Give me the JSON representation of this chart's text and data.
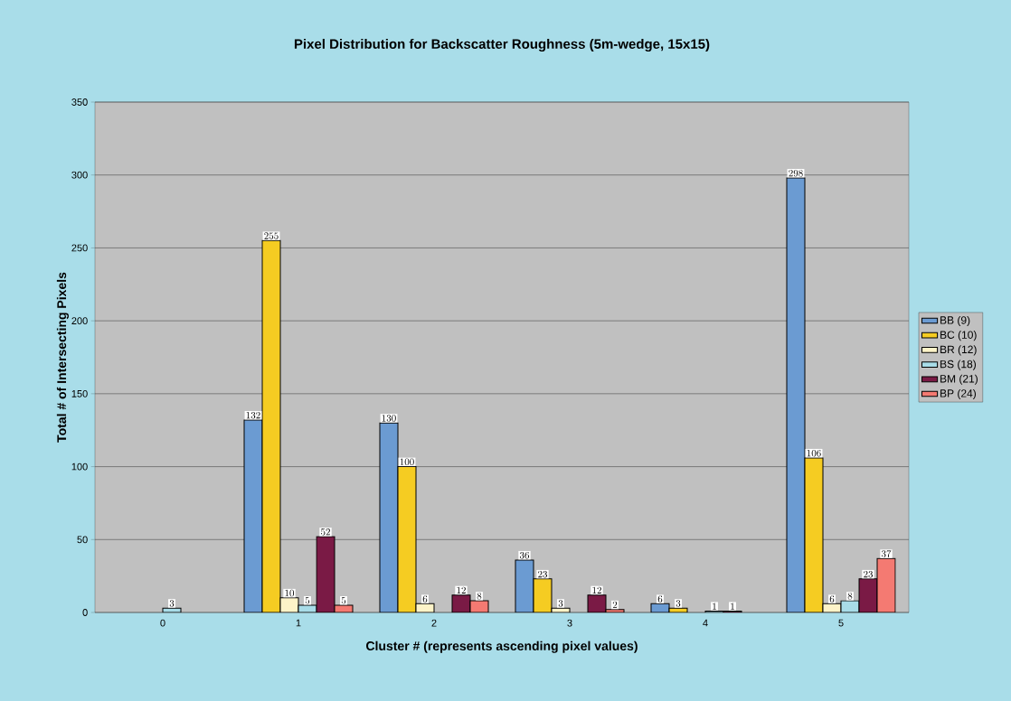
{
  "chart_data": {
    "type": "bar",
    "title": "Pixel Distribution for Backscatter Roughness (5m-wedge, 15x15)",
    "xlabel": "Cluster # (represents ascending pixel values)",
    "ylabel": "Total # of Intersecting Pixels",
    "categories": [
      "0",
      "1",
      "2",
      "3",
      "4",
      "5"
    ],
    "series": [
      {
        "name": "BB (9)",
        "color": "#6b9bd2",
        "values": [
          null,
          132,
          130,
          36,
          6,
          298
        ]
      },
      {
        "name": "BC (10)",
        "color": "#f5cc22",
        "values": [
          null,
          255,
          100,
          23,
          3,
          106
        ]
      },
      {
        "name": "BR (12)",
        "color": "#fdf3c8",
        "values": [
          null,
          10,
          6,
          3,
          null,
          6
        ]
      },
      {
        "name": "BS (18)",
        "color": "#a8dce8",
        "values": [
          3,
          5,
          null,
          null,
          1,
          8
        ]
      },
      {
        "name": "BM (21)",
        "color": "#7a1a45",
        "values": [
          null,
          52,
          12,
          12,
          1,
          23
        ]
      },
      {
        "name": "BP (24)",
        "color": "#f47a72",
        "values": [
          null,
          5,
          8,
          2,
          null,
          37
        ]
      }
    ],
    "ylim": [
      0,
      350
    ],
    "yticks": [
      0,
      50,
      100,
      150,
      200,
      250,
      300,
      350
    ],
    "grid": "y",
    "legend": "right",
    "data_labels": true
  }
}
